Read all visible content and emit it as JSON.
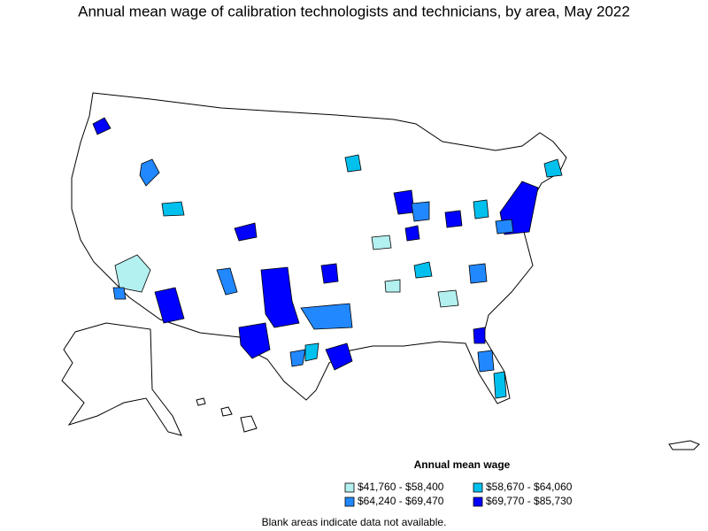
{
  "title": "Annual mean wage of calibration technologists and technicians, by area, May 2022",
  "legend": {
    "title": "Annual mean wage",
    "items": [
      {
        "label": "$41,760 - $58,400",
        "color": "#b3f0f0"
      },
      {
        "label": "$58,670 - $64,060",
        "color": "#00c0ee"
      },
      {
        "label": "$64,240 - $69,470",
        "color": "#2288ff"
      },
      {
        "label": "$69,770 - $85,730",
        "color": "#0000ff"
      }
    ]
  },
  "footnote": "Blank areas indicate data not available."
}
